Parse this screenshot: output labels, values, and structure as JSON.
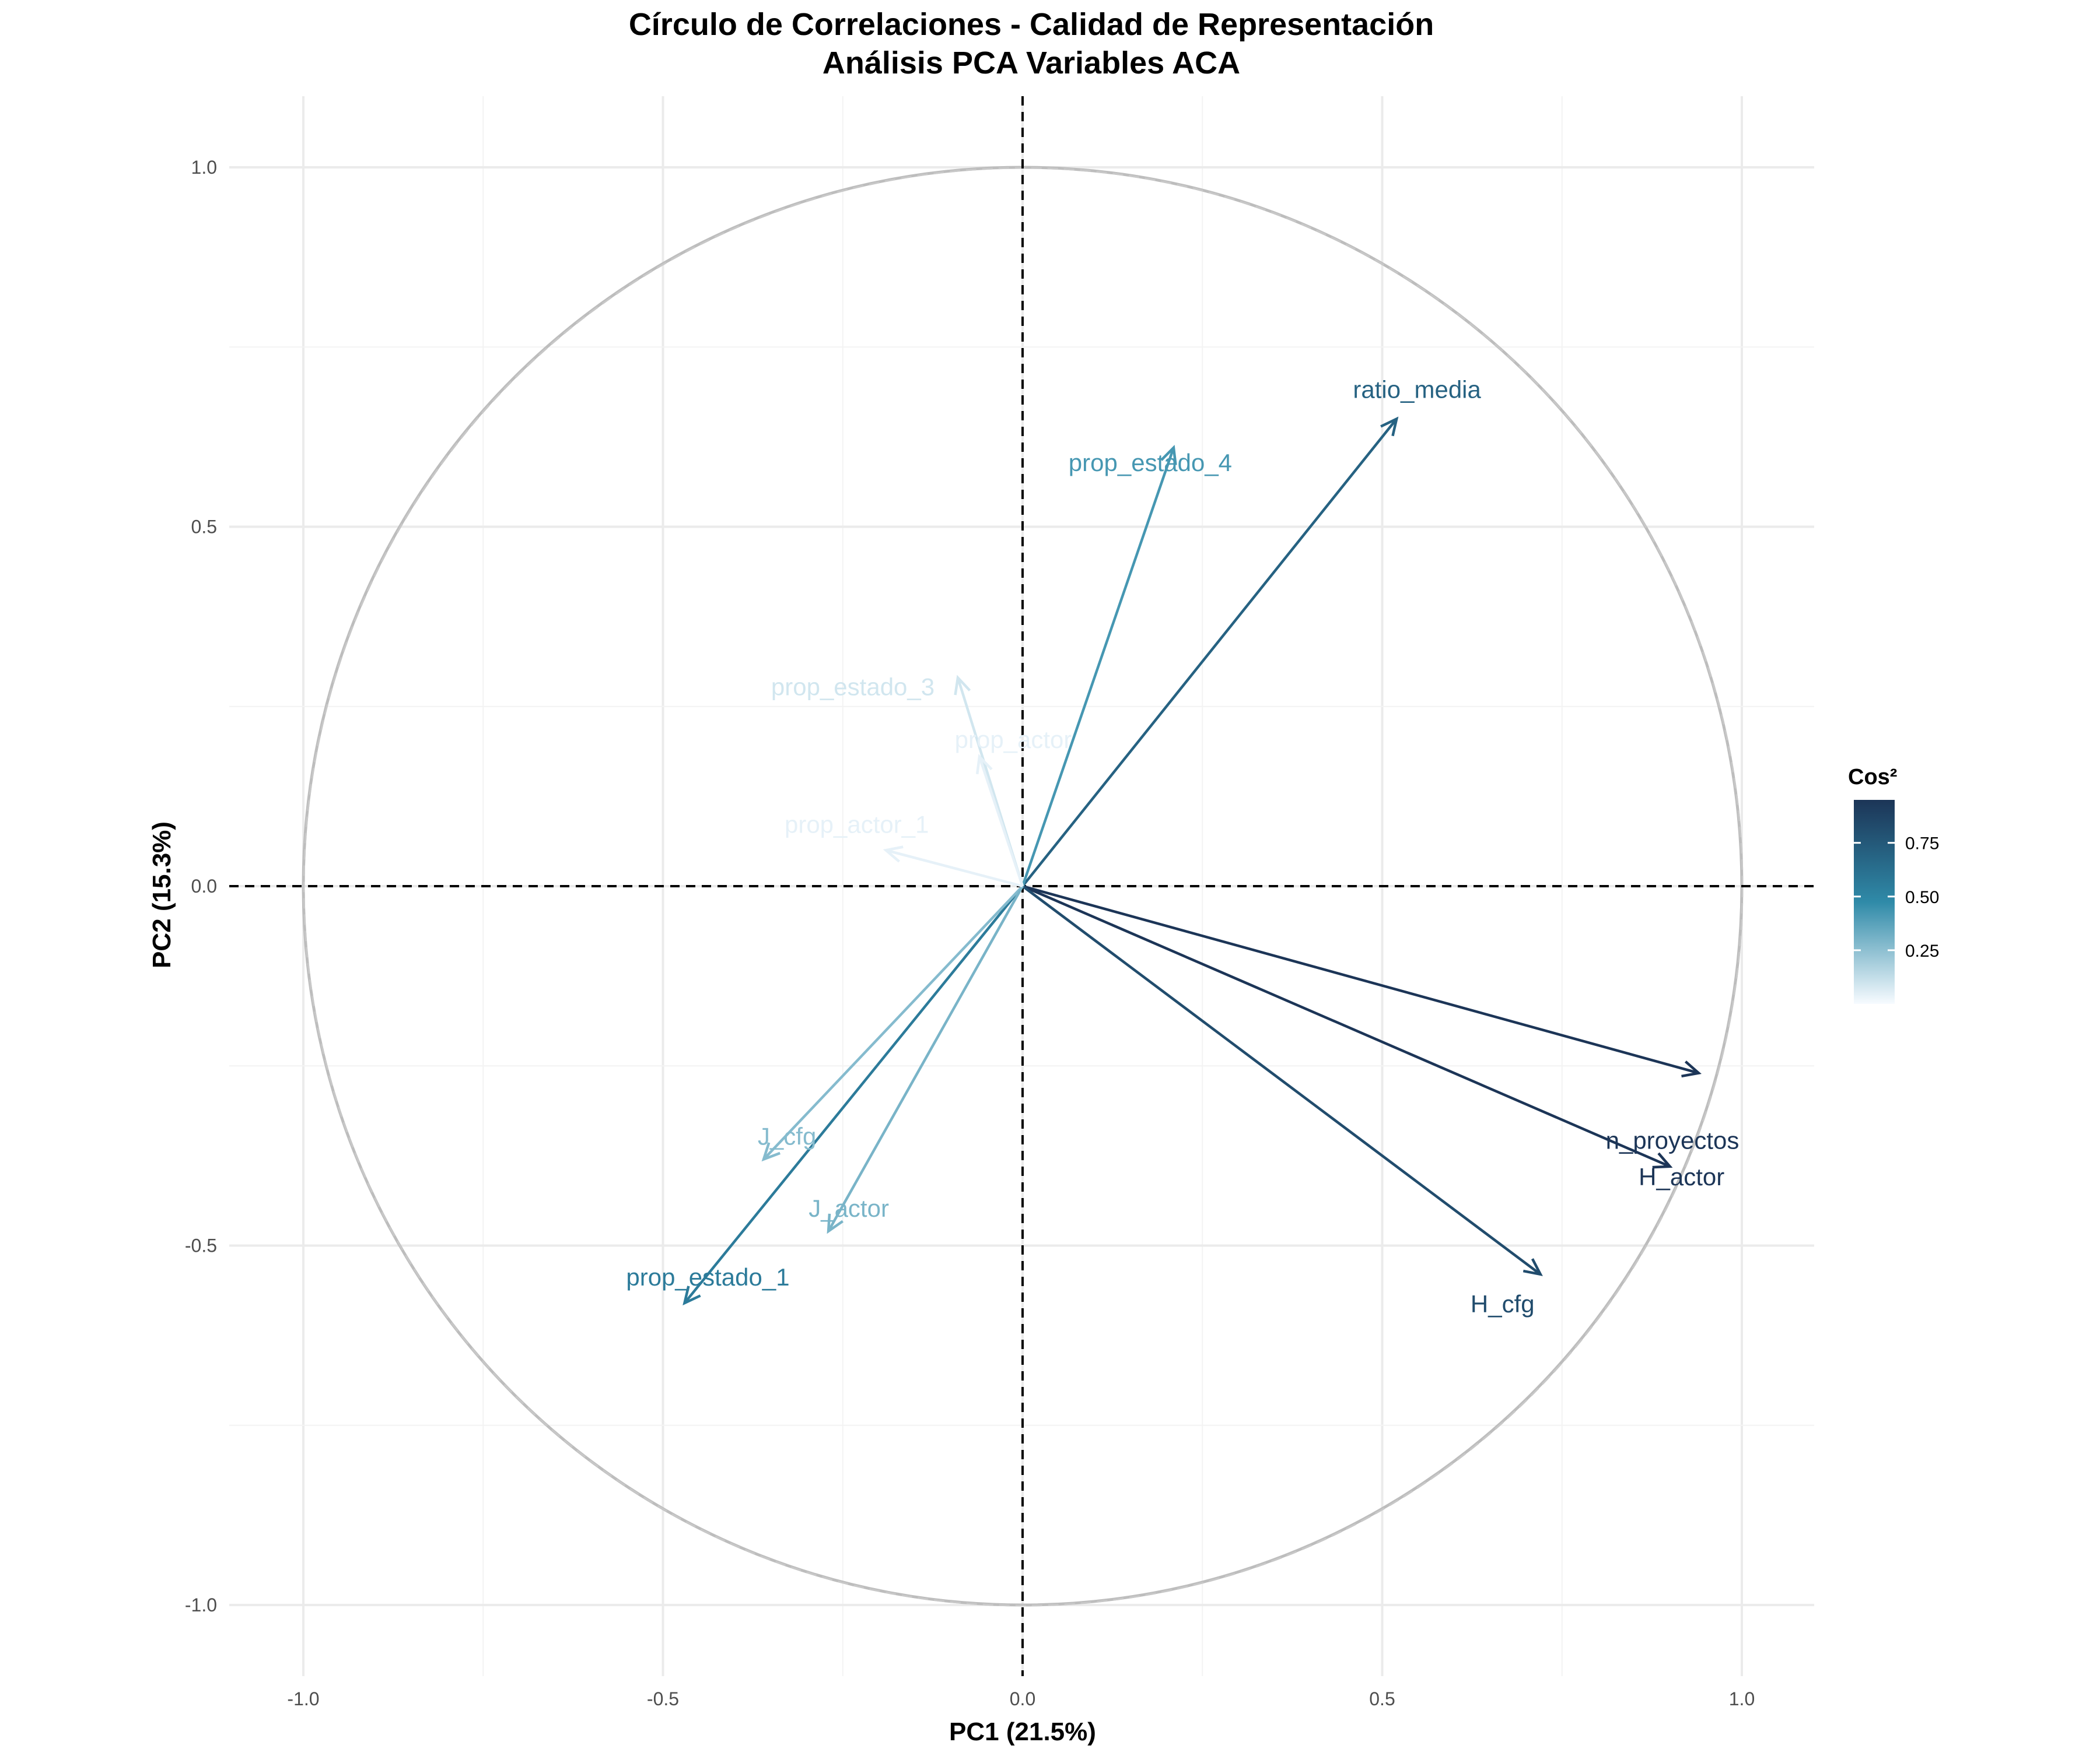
{
  "chart_data": {
    "type": "scatter",
    "subtype": "pca-correlation-circle",
    "title": "Círculo de Correlaciones - Calidad de Representación",
    "subtitle": "Análisis PCA Variables ACA",
    "xlabel": "PC1 (21.5%)",
    "ylabel": "PC2 (15.3%)",
    "xlim": [
      -1.1,
      1.1
    ],
    "ylim": [
      -1.1,
      1.1
    ],
    "x_ticks": [
      -1.0,
      -0.5,
      0.0,
      0.5,
      1.0
    ],
    "y_ticks": [
      -1.0,
      -0.5,
      0.0,
      0.5,
      1.0
    ],
    "x_tick_labels": [
      "-1.0",
      "-0.5",
      "0.0",
      "0.5",
      "1.0"
    ],
    "y_tick_labels": [
      "-1.0",
      "-0.5",
      "0.0",
      "0.5",
      "1.0"
    ],
    "grid": true,
    "unit_circle": true,
    "reference_lines": [
      0,
      0
    ],
    "color_scale": {
      "name": "Cos²",
      "low_color": "#f7fbff",
      "mid_color": "#2f8aa8",
      "high_color": "#1c3557",
      "ticks": [
        0.25,
        0.5,
        0.75
      ],
      "tick_labels": [
        "0.25",
        "0.50",
        "0.75"
      ],
      "domain": [
        0.0,
        0.95
      ]
    },
    "legend_position": "right",
    "variables": [
      {
        "name": "n_proyectos",
        "x": 0.94,
        "y": -0.26,
        "cos2": 0.95
      },
      {
        "name": "H_actor",
        "x": 0.9,
        "y": -0.39,
        "cos2": 0.95
      },
      {
        "name": "H_cfg",
        "x": 0.72,
        "y": -0.54,
        "cos2": 0.82
      },
      {
        "name": "ratio_media",
        "x": 0.52,
        "y": 0.65,
        "cos2": 0.7
      },
      {
        "name": "prop_estado_4",
        "x": 0.21,
        "y": 0.61,
        "cos2": 0.42
      },
      {
        "name": "prop_estado_1",
        "x": -0.47,
        "y": -0.58,
        "cos2": 0.56
      },
      {
        "name": "J_cfg",
        "x": -0.36,
        "y": -0.38,
        "cos2": 0.27
      },
      {
        "name": "J_actor",
        "x": -0.27,
        "y": -0.48,
        "cos2": 0.3
      },
      {
        "name": "prop_estado_3",
        "x": -0.09,
        "y": 0.29,
        "cos2": 0.09
      },
      {
        "name": "prop_actor",
        "x": -0.06,
        "y": 0.18,
        "cos2": 0.04
      },
      {
        "name": "prop_actor_1",
        "x": -0.19,
        "y": 0.05,
        "cos2": 0.04
      }
    ]
  }
}
